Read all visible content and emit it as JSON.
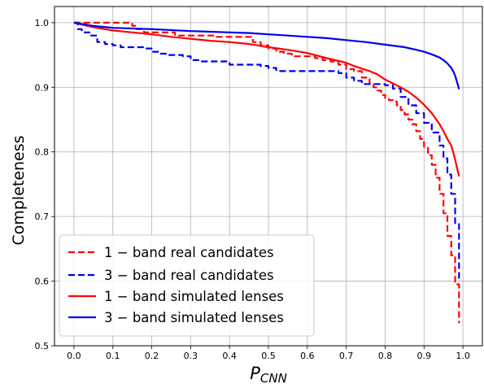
{
  "chart_data": {
    "type": "line",
    "title": "",
    "xlabel": "P_CNN",
    "xlabel_main": "P",
    "xlabel_sub": "CNN",
    "ylabel": "Completeness",
    "xlim": [
      -0.05,
      1.05
    ],
    "ylim": [
      0.5,
      1.025
    ],
    "xticks": [
      0.0,
      0.1,
      0.2,
      0.3,
      0.4,
      0.5,
      0.6,
      0.7,
      0.8,
      0.9,
      1.0
    ],
    "xtick_labels": [
      "0.0",
      "0.1",
      "0.2",
      "0.3",
      "0.4",
      "0.5",
      "0.6",
      "0.7",
      "0.8",
      "0.9",
      "1.0"
    ],
    "yticks": [
      0.5,
      0.6,
      0.7,
      0.8,
      0.9,
      1.0
    ],
    "ytick_labels": [
      "0.5",
      "0.6",
      "0.7",
      "0.8",
      "0.9",
      "1.0"
    ],
    "grid": true,
    "legend_position": "lower-left",
    "series": [
      {
        "name": "1 − band real candidates",
        "color": "#ff0000",
        "dash": "dashed",
        "step": true,
        "x": [
          0.0,
          0.01,
          0.02,
          0.03,
          0.04,
          0.06,
          0.08,
          0.1,
          0.12,
          0.14,
          0.15,
          0.16,
          0.18,
          0.2,
          0.22,
          0.24,
          0.26,
          0.28,
          0.3,
          0.32,
          0.34,
          0.36,
          0.38,
          0.4,
          0.42,
          0.44,
          0.46,
          0.48,
          0.5,
          0.52,
          0.54,
          0.56,
          0.58,
          0.6,
          0.62,
          0.64,
          0.66,
          0.68,
          0.7,
          0.72,
          0.74,
          0.76,
          0.77,
          0.78,
          0.79,
          0.8,
          0.81,
          0.82,
          0.83,
          0.84,
          0.85,
          0.86,
          0.87,
          0.88,
          0.89,
          0.9,
          0.91,
          0.92,
          0.93,
          0.94,
          0.95,
          0.96,
          0.97,
          0.98,
          0.99
        ],
        "y": [
          1.0,
          1.0,
          1.0,
          1.0,
          1.0,
          1.0,
          1.0,
          1.0,
          1.0,
          1.0,
          0.995,
          0.99,
          0.985,
          0.985,
          0.985,
          0.985,
          0.98,
          0.98,
          0.98,
          0.98,
          0.98,
          0.978,
          0.978,
          0.978,
          0.978,
          0.978,
          0.97,
          0.965,
          0.96,
          0.955,
          0.952,
          0.948,
          0.948,
          0.948,
          0.945,
          0.942,
          0.94,
          0.935,
          0.928,
          0.925,
          0.915,
          0.905,
          0.9,
          0.895,
          0.888,
          0.882,
          0.88,
          0.878,
          0.872,
          0.865,
          0.858,
          0.85,
          0.843,
          0.832,
          0.82,
          0.808,
          0.795,
          0.78,
          0.76,
          0.735,
          0.705,
          0.67,
          0.64,
          0.595,
          0.535
        ]
      },
      {
        "name": "3 − band real candidates",
        "color": "#0000ee",
        "dash": "dashed",
        "step": true,
        "x": [
          0.0,
          0.01,
          0.02,
          0.04,
          0.06,
          0.08,
          0.1,
          0.12,
          0.14,
          0.16,
          0.18,
          0.2,
          0.22,
          0.24,
          0.26,
          0.28,
          0.3,
          0.32,
          0.34,
          0.36,
          0.38,
          0.4,
          0.42,
          0.44,
          0.46,
          0.48,
          0.5,
          0.52,
          0.54,
          0.56,
          0.58,
          0.6,
          0.62,
          0.64,
          0.66,
          0.68,
          0.7,
          0.72,
          0.74,
          0.76,
          0.78,
          0.8,
          0.82,
          0.84,
          0.86,
          0.88,
          0.9,
          0.92,
          0.94,
          0.95,
          0.96,
          0.97,
          0.98,
          0.99
        ],
        "y": [
          1.0,
          0.99,
          0.985,
          0.98,
          0.97,
          0.967,
          0.965,
          0.962,
          0.962,
          0.962,
          0.96,
          0.955,
          0.952,
          0.95,
          0.95,
          0.948,
          0.942,
          0.94,
          0.94,
          0.94,
          0.94,
          0.935,
          0.935,
          0.935,
          0.935,
          0.933,
          0.93,
          0.925,
          0.925,
          0.925,
          0.925,
          0.925,
          0.925,
          0.925,
          0.925,
          0.922,
          0.915,
          0.91,
          0.905,
          0.905,
          0.905,
          0.903,
          0.898,
          0.885,
          0.872,
          0.86,
          0.845,
          0.83,
          0.81,
          0.79,
          0.765,
          0.735,
          0.69,
          0.6
        ]
      },
      {
        "name": "1 − band simulated lenses",
        "color": "#ff0000",
        "dash": "solid",
        "step": false,
        "x": [
          0.0,
          0.02,
          0.05,
          0.1,
          0.15,
          0.2,
          0.25,
          0.3,
          0.35,
          0.4,
          0.45,
          0.5,
          0.55,
          0.6,
          0.65,
          0.7,
          0.72,
          0.74,
          0.76,
          0.78,
          0.8,
          0.82,
          0.84,
          0.86,
          0.88,
          0.9,
          0.92,
          0.94,
          0.95,
          0.96,
          0.97,
          0.975,
          0.98,
          0.985,
          0.99
        ],
        "y": [
          1.0,
          0.997,
          0.993,
          0.988,
          0.985,
          0.982,
          0.978,
          0.975,
          0.972,
          0.97,
          0.967,
          0.962,
          0.958,
          0.953,
          0.945,
          0.938,
          0.933,
          0.929,
          0.925,
          0.92,
          0.912,
          0.906,
          0.9,
          0.893,
          0.884,
          0.873,
          0.86,
          0.843,
          0.832,
          0.82,
          0.81,
          0.8,
          0.788,
          0.775,
          0.762
        ]
      },
      {
        "name": "3 − band simulated lenses",
        "color": "#0000ee",
        "dash": "solid",
        "step": false,
        "x": [
          0.0,
          0.05,
          0.1,
          0.2,
          0.3,
          0.4,
          0.45,
          0.5,
          0.55,
          0.6,
          0.65,
          0.7,
          0.75,
          0.8,
          0.85,
          0.88,
          0.9,
          0.92,
          0.94,
          0.95,
          0.96,
          0.97,
          0.975,
          0.98,
          0.985,
          0.99
        ],
        "y": [
          1.0,
          0.995,
          0.992,
          0.99,
          0.987,
          0.985,
          0.984,
          0.982,
          0.98,
          0.978,
          0.976,
          0.973,
          0.97,
          0.966,
          0.962,
          0.958,
          0.955,
          0.951,
          0.946,
          0.942,
          0.937,
          0.93,
          0.925,
          0.918,
          0.908,
          0.897
        ]
      }
    ]
  },
  "legend": {
    "items": [
      {
        "n": "1",
        "text": "band real candidates"
      },
      {
        "n": "3",
        "text": "band real candidates"
      },
      {
        "n": "1",
        "text": "band simulated lenses"
      },
      {
        "n": "3",
        "text": "band simulated lenses"
      }
    ]
  }
}
